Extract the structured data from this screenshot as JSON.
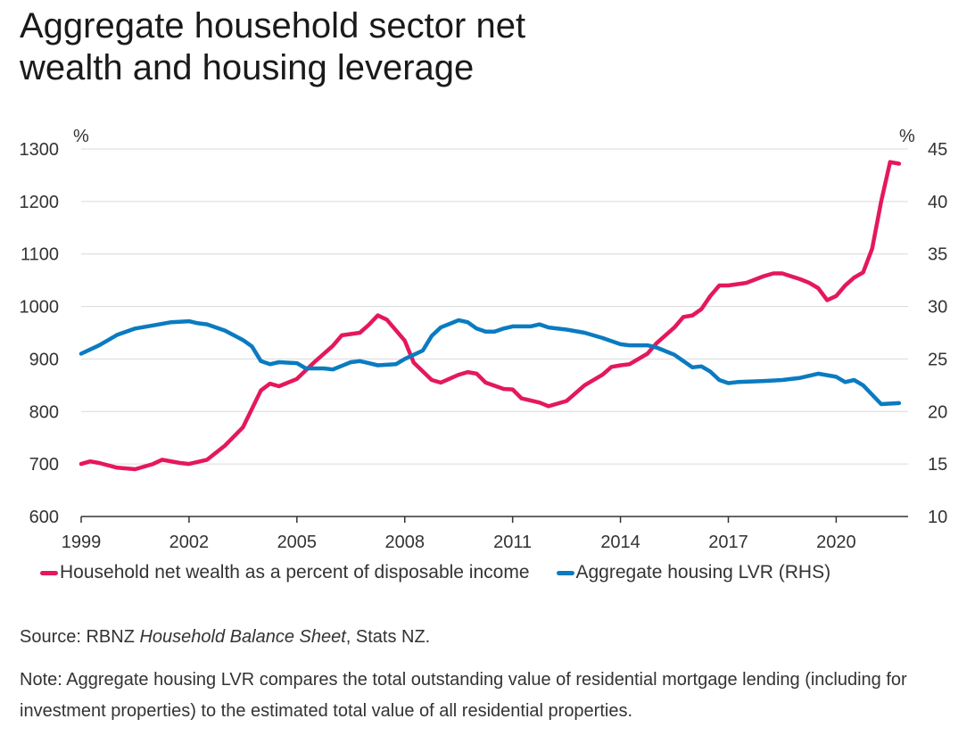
{
  "title_line1": "Aggregate household sector net",
  "title_line2": "wealth and housing leverage",
  "chart_data": {
    "type": "line",
    "left_axis": {
      "unit": "%",
      "ylim": [
        600,
        1300
      ],
      "ticks": [
        600,
        700,
        800,
        900,
        1000,
        1100,
        1200,
        1300
      ]
    },
    "right_axis": {
      "unit": "%",
      "ylim": [
        10,
        45
      ],
      "ticks": [
        10,
        15,
        20,
        25,
        30,
        35,
        40,
        45
      ]
    },
    "x_axis": {
      "xlim": [
        1999,
        2022
      ],
      "ticks": [
        1999,
        2002,
        2005,
        2008,
        2011,
        2014,
        2017,
        2020
      ]
    },
    "grid": true,
    "legend_position": "bottom",
    "series": [
      {
        "name": "Household net wealth as a percent of disposable income",
        "axis": "left",
        "color": "#e4185b",
        "x": [
          1999,
          1999.25,
          1999.5,
          2000,
          2000.5,
          2001,
          2001.25,
          2001.75,
          2002,
          2002.5,
          2003,
          2003.5,
          2004,
          2004.25,
          2004.5,
          2005,
          2005.5,
          2006,
          2006.25,
          2006.75,
          2007,
          2007.25,
          2007.5,
          2008,
          2008.25,
          2008.75,
          2009,
          2009.5,
          2009.75,
          2010,
          2010.25,
          2010.75,
          2011,
          2011.25,
          2011.75,
          2012,
          2012.5,
          2013,
          2013.5,
          2013.75,
          2014,
          2014.25,
          2014.75,
          2015,
          2015.5,
          2015.75,
          2016,
          2016.25,
          2016.5,
          2016.75,
          2017,
          2017.5,
          2018,
          2018.25,
          2018.5,
          2019,
          2019.25,
          2019.5,
          2019.75,
          2020,
          2020.25,
          2020.5,
          2020.75,
          2021,
          2021.25,
          2021.5,
          2021.75
        ],
        "y": [
          700,
          705,
          702,
          693,
          690,
          700,
          708,
          702,
          700,
          708,
          735,
          770,
          840,
          853,
          848,
          862,
          895,
          925,
          945,
          950,
          965,
          983,
          975,
          935,
          893,
          860,
          855,
          870,
          875,
          872,
          855,
          843,
          842,
          825,
          817,
          810,
          820,
          850,
          870,
          885,
          888,
          890,
          910,
          930,
          960,
          980,
          983,
          995,
          1020,
          1040,
          1040,
          1045,
          1058,
          1063,
          1063,
          1052,
          1045,
          1035,
          1012,
          1020,
          1040,
          1055,
          1065,
          1110,
          1200,
          1275,
          1272
        ]
      },
      {
        "name": "Aggregate housing LVR (RHS)",
        "axis": "right",
        "color": "#0a7bc1",
        "x": [
          1999,
          1999.5,
          2000,
          2000.5,
          2001,
          2001.5,
          2002,
          2002.25,
          2002.5,
          2003,
          2003.5,
          2003.75,
          2004,
          2004.25,
          2004.5,
          2005,
          2005.25,
          2005.75,
          2006,
          2006.5,
          2006.75,
          2007,
          2007.25,
          2007.75,
          2008,
          2008.5,
          2008.75,
          2009,
          2009.5,
          2009.75,
          2010,
          2010.25,
          2010.5,
          2010.75,
          2011,
          2011.5,
          2011.75,
          2012,
          2012.5,
          2013,
          2013.5,
          2014,
          2014.25,
          2014.75,
          2015,
          2015.5,
          2016,
          2016.25,
          2016.5,
          2016.75,
          2017,
          2017.25,
          2018,
          2018.5,
          2019,
          2019.5,
          2020,
          2020.25,
          2020.5,
          2020.75,
          2021.25,
          2021.75
        ],
        "y": [
          25.5,
          26.3,
          27.3,
          27.9,
          28.2,
          28.5,
          28.6,
          28.4,
          28.3,
          27.7,
          26.8,
          26.2,
          24.8,
          24.5,
          24.7,
          24.6,
          24.1,
          24.1,
          24.0,
          24.7,
          24.8,
          24.6,
          24.4,
          24.5,
          25.0,
          25.8,
          27.2,
          28.0,
          28.7,
          28.5,
          27.9,
          27.6,
          27.6,
          27.9,
          28.1,
          28.1,
          28.3,
          28.0,
          27.8,
          27.5,
          27.0,
          26.4,
          26.3,
          26.3,
          26.1,
          25.4,
          24.2,
          24.3,
          23.8,
          23.0,
          22.7,
          22.8,
          22.9,
          23.0,
          23.2,
          23.6,
          23.3,
          22.8,
          23.0,
          22.5,
          20.7,
          20.8
        ]
      }
    ]
  },
  "source_prefix": "Source: RBNZ ",
  "source_italic": "Household Balance Sheet",
  "source_suffix": ", Stats NZ.",
  "note": "Note: Aggregate housing LVR compares the total outstanding value of residential mortgage lending (including for investment properties) to the estimated total value of all residential properties."
}
